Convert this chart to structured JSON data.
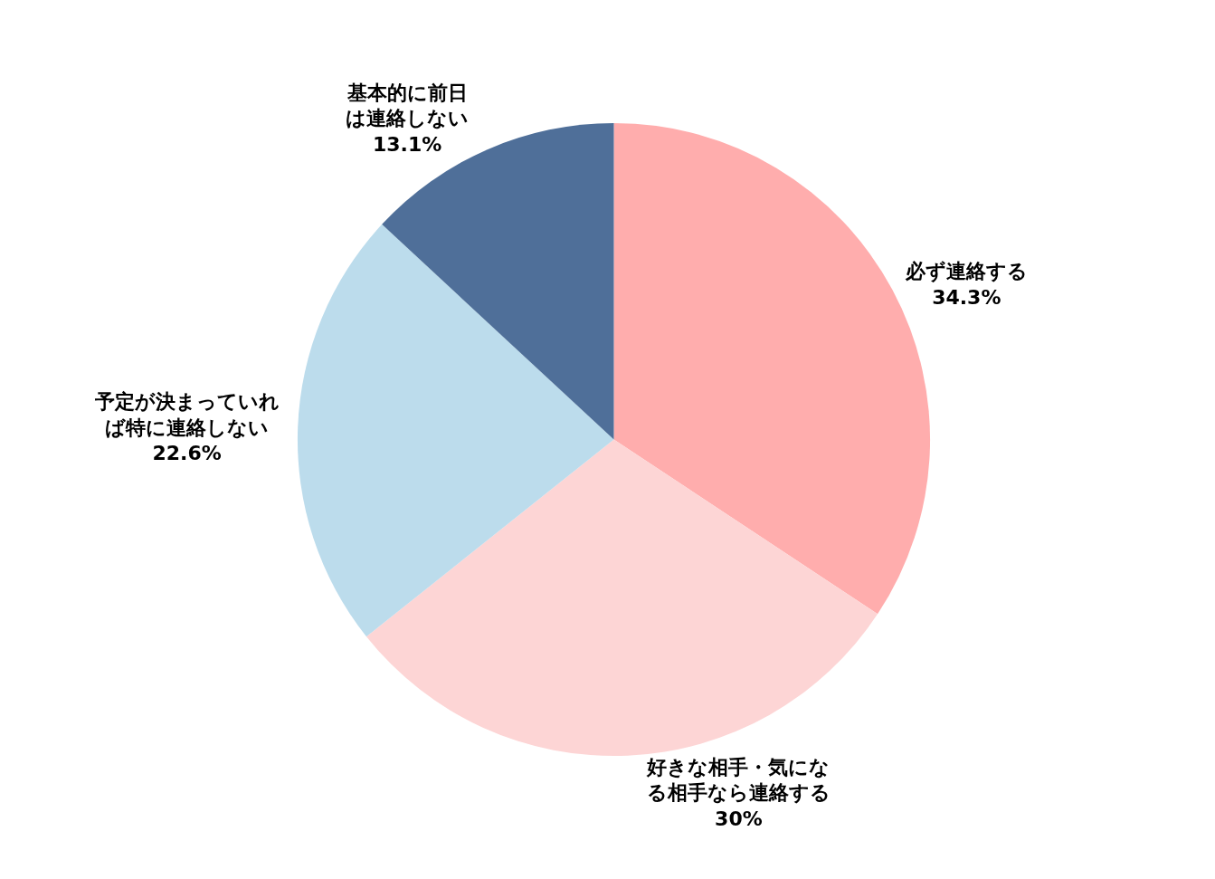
{
  "chart_data": {
    "type": "pie",
    "categories": [
      "必ず連絡する",
      "好きな相手・気になる相手なら連絡する",
      "予定が決まっていれば特に連絡しない",
      "基本的に前日は連絡しない"
    ],
    "values": [
      34.3,
      30,
      22.6,
      13.1
    ],
    "value_labels": [
      "34.3%",
      "30%",
      "22.6%",
      "13.1%"
    ],
    "colors": [
      "#ffadad",
      "#fdd5d5",
      "#bcdcec",
      "#4f6f99"
    ]
  }
}
